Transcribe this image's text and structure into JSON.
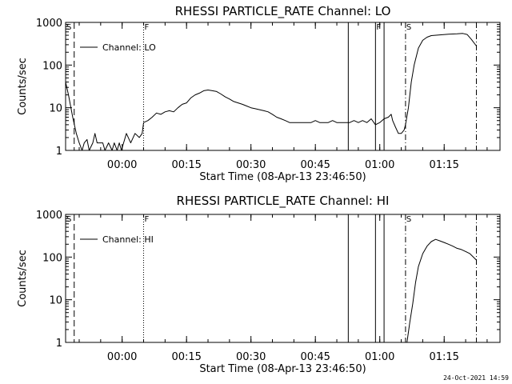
{
  "chart_data": [
    {
      "type": "line",
      "title": "RHESSI PARTICLE_RATE Channel: LO",
      "xlabel": "Start Time (08-Apr-13 23:46:50)",
      "ylabel": "Counts/sec",
      "y_scale": "log",
      "ylim": [
        1,
        1000
      ],
      "xlim": [
        "23:46:50",
        "01:28:00"
      ],
      "x_ticks": [
        "00:00",
        "00:15",
        "00:30",
        "00:45",
        "01:00",
        "01:15"
      ],
      "y_ticks": [
        "1",
        "10",
        "100",
        "1000"
      ],
      "legend": {
        "position": "top-left",
        "entries": [
          "Channel: LO"
        ]
      },
      "markers": [
        {
          "time": "23:46:50",
          "style": "solid",
          "label": "S"
        },
        {
          "time": "23:48:50",
          "style": "dashed",
          "label": ""
        },
        {
          "time": "00:05:00",
          "style": "dotted",
          "label": "F"
        },
        {
          "time": "00:52:40",
          "style": "solid",
          "label": ""
        },
        {
          "time": "00:59:00",
          "style": "solid",
          "label": "F"
        },
        {
          "time": "01:01:00",
          "style": "solid",
          "label": ""
        },
        {
          "time": "01:06:00",
          "style": "dashdot",
          "label": "S"
        },
        {
          "time": "01:22:30",
          "style": "dashdot",
          "label": ""
        }
      ],
      "series": [
        {
          "name": "Channel: LO",
          "segments": [
            [
              [
                "23:46:50",
                40
              ],
              [
                "23:47:30",
                20
              ],
              [
                "23:48:30",
                6
              ],
              [
                "23:49:20",
                2.5
              ],
              [
                "23:50:00",
                1.5
              ],
              [
                "23:50:40",
                1
              ],
              [
                "23:51:10",
                1.5
              ],
              [
                "23:51:50",
                1.8
              ],
              [
                "23:52:20",
                1
              ],
              [
                "23:53:10",
                1.5
              ],
              [
                "23:53:40",
                2.5
              ],
              [
                "23:54:10",
                1.5
              ],
              [
                "23:55:30",
                1.5
              ],
              [
                "23:56:00",
                1
              ],
              [
                "23:56:50",
                1.5
              ],
              [
                "23:57:40",
                1
              ],
              [
                "23:58:10",
                1.5
              ],
              [
                "23:58:50",
                1
              ],
              [
                "23:59:20",
                1.5
              ],
              [
                "23:59:50",
                1
              ],
              [
                "00:00:20",
                1.5
              ],
              [
                "00:01:00",
                2.5
              ],
              [
                "00:02:00",
                1.5
              ],
              [
                "00:03:00",
                2.5
              ],
              [
                "00:04:00",
                2
              ],
              [
                "00:04:40",
                2.5
              ],
              [
                "00:05:00",
                4.5
              ]
            ],
            [
              [
                "00:05:00",
                4.5
              ],
              [
                "00:06:00",
                5
              ],
              [
                "00:07:00",
                6
              ],
              [
                "00:08:00",
                7.5
              ],
              [
                "00:09:00",
                7
              ],
              [
                "00:10:00",
                8
              ],
              [
                "00:11:00",
                8.5
              ],
              [
                "00:12:00",
                8
              ],
              [
                "00:13:00",
                10
              ],
              [
                "00:14:00",
                12
              ],
              [
                "00:15:00",
                13
              ],
              [
                "00:16:00",
                17
              ],
              [
                "00:17:00",
                20
              ],
              [
                "00:18:00",
                22
              ],
              [
                "00:19:00",
                25
              ],
              [
                "00:20:00",
                26
              ],
              [
                "00:21:00",
                25
              ],
              [
                "00:22:00",
                24
              ],
              [
                "00:23:00",
                21
              ],
              [
                "00:24:00",
                18
              ],
              [
                "00:25:00",
                16
              ],
              [
                "00:26:00",
                14
              ],
              [
                "00:27:00",
                13
              ],
              [
                "00:28:00",
                12
              ],
              [
                "00:29:00",
                11
              ],
              [
                "00:30:00",
                10
              ],
              [
                "00:31:00",
                9.5
              ],
              [
                "00:32:00",
                9
              ],
              [
                "00:33:00",
                8.5
              ],
              [
                "00:34:00",
                8
              ],
              [
                "00:35:00",
                7
              ],
              [
                "00:36:00",
                6
              ],
              [
                "00:37:00",
                5.5
              ],
              [
                "00:38:00",
                5
              ],
              [
                "00:39:00",
                4.5
              ],
              [
                "00:40:00",
                4.5
              ],
              [
                "00:41:00",
                4.5
              ],
              [
                "00:42:00",
                4.5
              ],
              [
                "00:43:00",
                4.5
              ],
              [
                "00:44:00",
                4.5
              ],
              [
                "00:45:00",
                5
              ],
              [
                "00:46:00",
                4.5
              ],
              [
                "00:47:00",
                4.5
              ],
              [
                "00:48:00",
                4.5
              ],
              [
                "00:49:00",
                5
              ],
              [
                "00:50:00",
                4.5
              ],
              [
                "00:51:00",
                4.5
              ],
              [
                "00:52:00",
                4.5
              ],
              [
                "00:53:00",
                4.5
              ],
              [
                "00:54:00",
                5
              ],
              [
                "00:55:00",
                4.5
              ],
              [
                "00:56:00",
                5
              ],
              [
                "00:57:00",
                4.5
              ],
              [
                "00:58:00",
                5.5
              ],
              [
                "00:59:00",
                4
              ],
              [
                "01:00:00",
                4.5
              ],
              [
                "01:01:00",
                5.5
              ],
              [
                "01:02:00",
                6
              ],
              [
                "01:02:40",
                7
              ],
              [
                "01:03:00",
                5
              ],
              [
                "01:03:40",
                3.5
              ],
              [
                "01:04:20",
                2.5
              ],
              [
                "01:05:00",
                2.5
              ],
              [
                "01:05:40",
                3
              ],
              [
                "01:06:00",
                4
              ],
              [
                "01:06:40",
                10
              ],
              [
                "01:07:20",
                40
              ],
              [
                "01:08:00",
                100
              ],
              [
                "01:09:00",
                250
              ],
              [
                "01:10:00",
                380
              ],
              [
                "01:11:00",
                450
              ],
              [
                "01:12:00",
                490
              ],
              [
                "01:14:00",
                510
              ],
              [
                "01:16:00",
                530
              ],
              [
                "01:18:00",
                540
              ],
              [
                "01:19:20",
                550
              ],
              [
                "01:20:20",
                520
              ],
              [
                "01:21:20",
                400
              ],
              [
                "01:22:30",
                280
              ]
            ]
          ]
        }
      ]
    },
    {
      "type": "line",
      "title": "RHESSI PARTICLE_RATE Channel: HI",
      "xlabel": "Start Time (08-Apr-13 23:46:50)",
      "ylabel": "Counts/sec",
      "y_scale": "log",
      "ylim": [
        1,
        1000
      ],
      "xlim": [
        "23:46:50",
        "01:28:00"
      ],
      "x_ticks": [
        "00:00",
        "00:15",
        "00:30",
        "00:45",
        "01:00",
        "01:15"
      ],
      "y_ticks": [
        "1",
        "10",
        "100",
        "1000"
      ],
      "legend": {
        "position": "top-left",
        "entries": [
          "Channel: HI"
        ]
      },
      "markers": [
        {
          "time": "23:46:50",
          "style": "solid",
          "label": "S"
        },
        {
          "time": "23:48:50",
          "style": "dashed",
          "label": ""
        },
        {
          "time": "00:05:00",
          "style": "dotted",
          "label": "F"
        },
        {
          "time": "00:52:40",
          "style": "solid",
          "label": ""
        },
        {
          "time": "00:59:00",
          "style": "solid",
          "label": ""
        },
        {
          "time": "01:01:00",
          "style": "solid",
          "label": ""
        },
        {
          "time": "01:06:00",
          "style": "dashdot",
          "label": "S"
        },
        {
          "time": "01:22:30",
          "style": "dashdot",
          "label": ""
        }
      ],
      "series": [
        {
          "name": "Channel: HI",
          "segments": [
            [
              [
                "01:06:20",
                1
              ],
              [
                "01:07:00",
                3
              ],
              [
                "01:07:40",
                8
              ],
              [
                "01:08:20",
                25
              ],
              [
                "01:09:00",
                60
              ],
              [
                "01:10:00",
                120
              ],
              [
                "01:11:00",
                180
              ],
              [
                "01:12:00",
                230
              ],
              [
                "01:13:00",
                260
              ],
              [
                "01:14:00",
                240
              ],
              [
                "01:15:00",
                220
              ],
              [
                "01:16:00",
                200
              ],
              [
                "01:17:00",
                180
              ],
              [
                "01:18:00",
                160
              ],
              [
                "01:19:00",
                150
              ],
              [
                "01:20:00",
                135
              ],
              [
                "01:21:00",
                120
              ],
              [
                "01:22:30",
                85
              ]
            ]
          ]
        }
      ]
    }
  ],
  "timestamp": "24-Oct-2021 14:59"
}
